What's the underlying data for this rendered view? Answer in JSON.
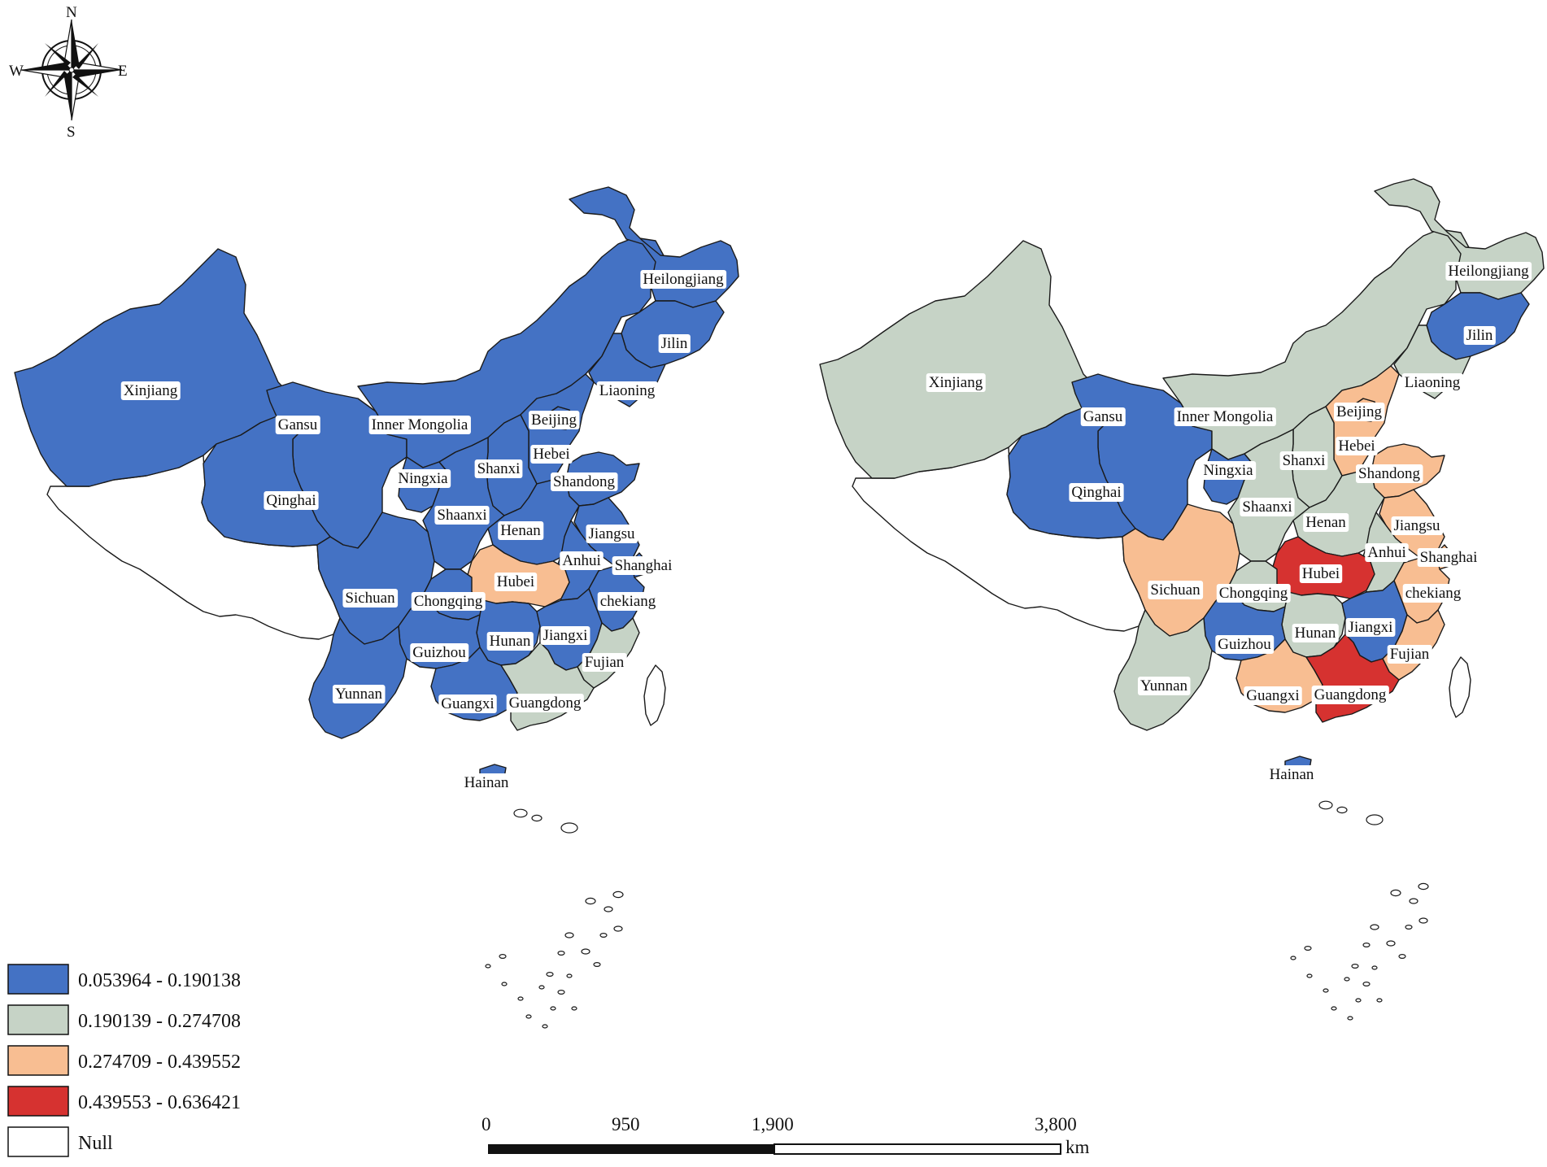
{
  "colors": {
    "class1": "#4472c4",
    "class2": "#c6d3c6",
    "class3": "#f8be92",
    "class4": "#d63230",
    "null": "#ffffff"
  },
  "compass": {
    "n": "N",
    "s": "S",
    "e": "E",
    "w": "W"
  },
  "legend": [
    {
      "label": "0.053964 - 0.190138",
      "cls": "class1"
    },
    {
      "label": "0.190139 - 0.274708",
      "cls": "class2"
    },
    {
      "label": "0.274709 - 0.439552",
      "cls": "class3"
    },
    {
      "label": "0.439553 - 0.636421",
      "cls": "class4"
    },
    {
      "label": "Null",
      "cls": "null"
    }
  ],
  "scale": {
    "ticks": [
      "0",
      "950",
      "1,900",
      "3,800"
    ],
    "unit": "km"
  },
  "maps": [
    {
      "id": "left",
      "provinces": [
        {
          "name": "Xinjiang",
          "cls": "class1"
        },
        {
          "name": "Gansu",
          "cls": "class1"
        },
        {
          "name": "Inner Mongolia",
          "cls": "class1"
        },
        {
          "name": "Heilongjiang",
          "cls": "class1"
        },
        {
          "name": "Jilin",
          "cls": "class1"
        },
        {
          "name": "Liaoning",
          "cls": "class1"
        },
        {
          "name": "Beijing",
          "cls": "class1"
        },
        {
          "name": "Hebei",
          "cls": "class1"
        },
        {
          "name": "Shanxi",
          "cls": "class1"
        },
        {
          "name": "Shandong",
          "cls": "class1"
        },
        {
          "name": "Ningxia",
          "cls": "class1"
        },
        {
          "name": "Qinghai",
          "cls": "class1"
        },
        {
          "name": "Shaanxi",
          "cls": "class1"
        },
        {
          "name": "Henan",
          "cls": "class1"
        },
        {
          "name": "Jiangsu",
          "cls": "class1"
        },
        {
          "name": "Anhui",
          "cls": "class1"
        },
        {
          "name": "Shanghai",
          "cls": "class1"
        },
        {
          "name": "Hubei",
          "cls": "class3"
        },
        {
          "name": "Sichuan",
          "cls": "class1"
        },
        {
          "name": "Chongqing",
          "cls": "class1"
        },
        {
          "name": "chekiang",
          "cls": "class1"
        },
        {
          "name": "Hunan",
          "cls": "class1"
        },
        {
          "name": "Jiangxi",
          "cls": "class1"
        },
        {
          "name": "Guizhou",
          "cls": "class1"
        },
        {
          "name": "Fujian",
          "cls": "class2"
        },
        {
          "name": "Yunnan",
          "cls": "class1"
        },
        {
          "name": "Guangxi",
          "cls": "class1"
        },
        {
          "name": "Guangdong",
          "cls": "class2"
        },
        {
          "name": "Hainan",
          "cls": "class1"
        }
      ]
    },
    {
      "id": "right",
      "provinces": [
        {
          "name": "Xinjiang",
          "cls": "class2"
        },
        {
          "name": "Gansu",
          "cls": "class1"
        },
        {
          "name": "Inner Mongolia",
          "cls": "class2"
        },
        {
          "name": "Heilongjiang",
          "cls": "class2"
        },
        {
          "name": "Jilin",
          "cls": "class1"
        },
        {
          "name": "Liaoning",
          "cls": "class2"
        },
        {
          "name": "Beijing",
          "cls": "class3"
        },
        {
          "name": "Hebei",
          "cls": "class3"
        },
        {
          "name": "Shanxi",
          "cls": "class2"
        },
        {
          "name": "Shandong",
          "cls": "class3"
        },
        {
          "name": "Ningxia",
          "cls": "class1"
        },
        {
          "name": "Qinghai",
          "cls": "class1"
        },
        {
          "name": "Shaanxi",
          "cls": "class2"
        },
        {
          "name": "Henan",
          "cls": "class2"
        },
        {
          "name": "Jiangsu",
          "cls": "class3"
        },
        {
          "name": "Anhui",
          "cls": "class2"
        },
        {
          "name": "Shanghai",
          "cls": "class3"
        },
        {
          "name": "Hubei",
          "cls": "class4"
        },
        {
          "name": "Sichuan",
          "cls": "class3"
        },
        {
          "name": "Chongqing",
          "cls": "class2"
        },
        {
          "name": "chekiang",
          "cls": "class3"
        },
        {
          "name": "Hunan",
          "cls": "class2"
        },
        {
          "name": "Jiangxi",
          "cls": "class1"
        },
        {
          "name": "Guizhou",
          "cls": "class1"
        },
        {
          "name": "Fujian",
          "cls": "class3"
        },
        {
          "name": "Yunnan",
          "cls": "class2"
        },
        {
          "name": "Guangxi",
          "cls": "class3"
        },
        {
          "name": "Guangdong",
          "cls": "class4"
        },
        {
          "name": "Hainan",
          "cls": "class1"
        }
      ]
    }
  ]
}
